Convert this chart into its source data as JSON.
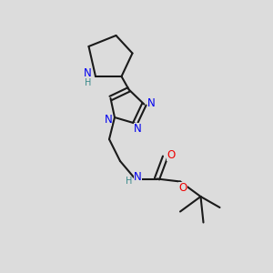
{
  "bg_color": "#dcdcdc",
  "bond_color": "#1a1a1a",
  "N_color": "#0000ee",
  "O_color": "#ee0000",
  "H_color": "#3a8a8a",
  "line_width": 1.5,
  "font_size": 8.5,
  "xlim": [
    0,
    10
  ],
  "ylim": [
    0,
    10
  ]
}
